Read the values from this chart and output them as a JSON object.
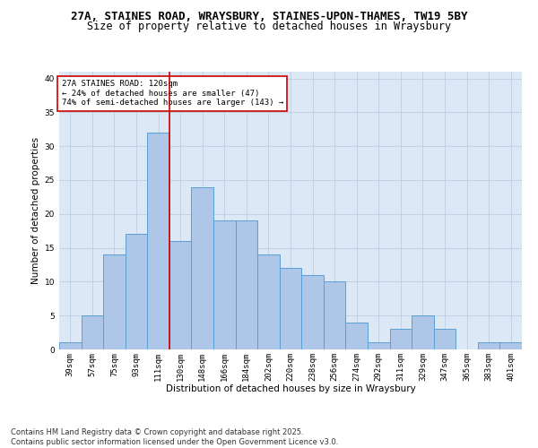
{
  "title1": "27A, STAINES ROAD, WRAYSBURY, STAINES-UPON-THAMES, TW19 5BY",
  "title2": "Size of property relative to detached houses in Wraysbury",
  "xlabel": "Distribution of detached houses by size in Wraysbury",
  "ylabel": "Number of detached properties",
  "bins": [
    "39sqm",
    "57sqm",
    "75sqm",
    "93sqm",
    "111sqm",
    "130sqm",
    "148sqm",
    "166sqm",
    "184sqm",
    "202sqm",
    "220sqm",
    "238sqm",
    "256sqm",
    "274sqm",
    "292sqm",
    "311sqm",
    "329sqm",
    "347sqm",
    "365sqm",
    "383sqm",
    "401sqm"
  ],
  "values": [
    1,
    5,
    14,
    17,
    32,
    16,
    24,
    19,
    19,
    14,
    12,
    11,
    10,
    4,
    1,
    3,
    5,
    3,
    0,
    1,
    1
  ],
  "bar_color": "#aec6e8",
  "bar_edge_color": "#5a9fd4",
  "vline_x": 4.5,
  "vline_color": "#cc0000",
  "annotation_title": "27A STAINES ROAD: 120sqm",
  "annotation_line1": "← 24% of detached houses are smaller (47)",
  "annotation_line2": "74% of semi-detached houses are larger (143) →",
  "annotation_box_color": "#ffffff",
  "annotation_box_edge": "#cc0000",
  "ylim": [
    0,
    41
  ],
  "yticks": [
    0,
    5,
    10,
    15,
    20,
    25,
    30,
    35,
    40
  ],
  "background_color": "#dce8f5",
  "footer1": "Contains HM Land Registry data © Crown copyright and database right 2025.",
  "footer2": "Contains public sector information licensed under the Open Government Licence v3.0.",
  "title_fontsize": 9,
  "subtitle_fontsize": 8.5,
  "axis_label_fontsize": 7.5,
  "tick_fontsize": 6.5,
  "footer_fontsize": 6.0,
  "ann_fontsize": 6.5
}
